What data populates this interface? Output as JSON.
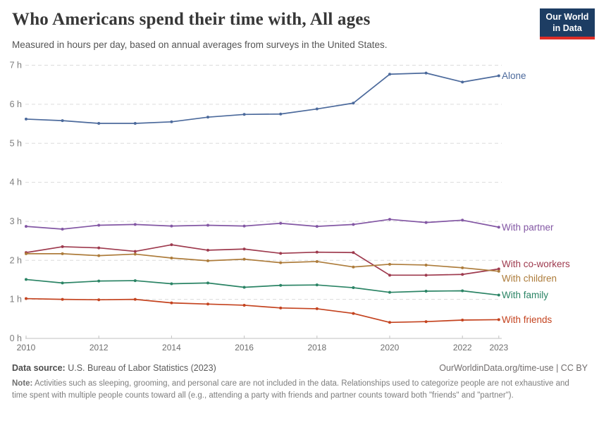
{
  "header": {
    "title": "Who Americans spend their time with, All ages",
    "subtitle": "Measured in hours per day, based on annual averages from surveys in the United States.",
    "logo": {
      "line1": "Our World",
      "line2": "in Data"
    }
  },
  "chart_data": {
    "type": "line",
    "title": "Who Americans spend their time with, All ages",
    "x": [
      2010,
      2011,
      2012,
      2013,
      2014,
      2015,
      2016,
      2017,
      2018,
      2019,
      2020,
      2021,
      2022,
      2023
    ],
    "x_ticks": [
      2010,
      2012,
      2014,
      2016,
      2018,
      2020,
      2022,
      2023
    ],
    "y_ticks": [
      0,
      1,
      2,
      3,
      4,
      5,
      6,
      7
    ],
    "y_tick_suffix": " h",
    "ylim": [
      0,
      7
    ],
    "grid": "horizontal-dashed",
    "legend_position": "labels-at-line-ends-right",
    "series": [
      {
        "name": "Alone",
        "color": "#4C6A9C",
        "label_dy": 0,
        "values": [
          5.62,
          5.58,
          5.51,
          5.51,
          5.55,
          5.67,
          5.74,
          5.75,
          5.88,
          6.03,
          6.77,
          6.8,
          6.57,
          6.73
        ]
      },
      {
        "name": "With partner",
        "color": "#8357A4",
        "label_dy": 0,
        "values": [
          2.87,
          2.8,
          2.9,
          2.92,
          2.88,
          2.9,
          2.88,
          2.95,
          2.87,
          2.92,
          3.05,
          2.97,
          3.03,
          2.85
        ]
      },
      {
        "name": "With co-workers",
        "color": "#9E3A4E",
        "label_dy": -7,
        "values": [
          2.2,
          2.35,
          2.32,
          2.23,
          2.4,
          2.26,
          2.29,
          2.18,
          2.21,
          2.2,
          1.62,
          1.62,
          1.64,
          1.78
        ]
      },
      {
        "name": "With children",
        "color": "#AD7C3B",
        "label_dy": 10,
        "values": [
          2.17,
          2.17,
          2.12,
          2.16,
          2.06,
          1.99,
          2.03,
          1.94,
          1.97,
          1.83,
          1.9,
          1.88,
          1.81,
          1.72
        ]
      },
      {
        "name": "With family",
        "color": "#2B8465",
        "label_dy": 0,
        "values": [
          1.51,
          1.42,
          1.47,
          1.48,
          1.4,
          1.42,
          1.31,
          1.36,
          1.37,
          1.3,
          1.18,
          1.21,
          1.22,
          1.11
        ]
      },
      {
        "name": "With friends",
        "color": "#C4431F",
        "label_dy": 0,
        "values": [
          1.02,
          1.0,
          0.99,
          1.0,
          0.91,
          0.88,
          0.85,
          0.78,
          0.76,
          0.64,
          0.41,
          0.43,
          0.47,
          0.48
        ]
      }
    ]
  },
  "footer": {
    "datasource_label": "Data source:",
    "datasource": " U.S. Bureau of Labor Statistics (2023)",
    "attribution": "OurWorldinData.org/time-use | CC BY",
    "note_label": "Note:",
    "note": " Activities such as sleeping, grooming, and personal care are not included in the data. Relationships used to categorize people are not exhaustive and time spent with multiple people counts toward all (e.g., attending a party with friends and partner counts toward both \"friends\" and \"partner\")."
  }
}
